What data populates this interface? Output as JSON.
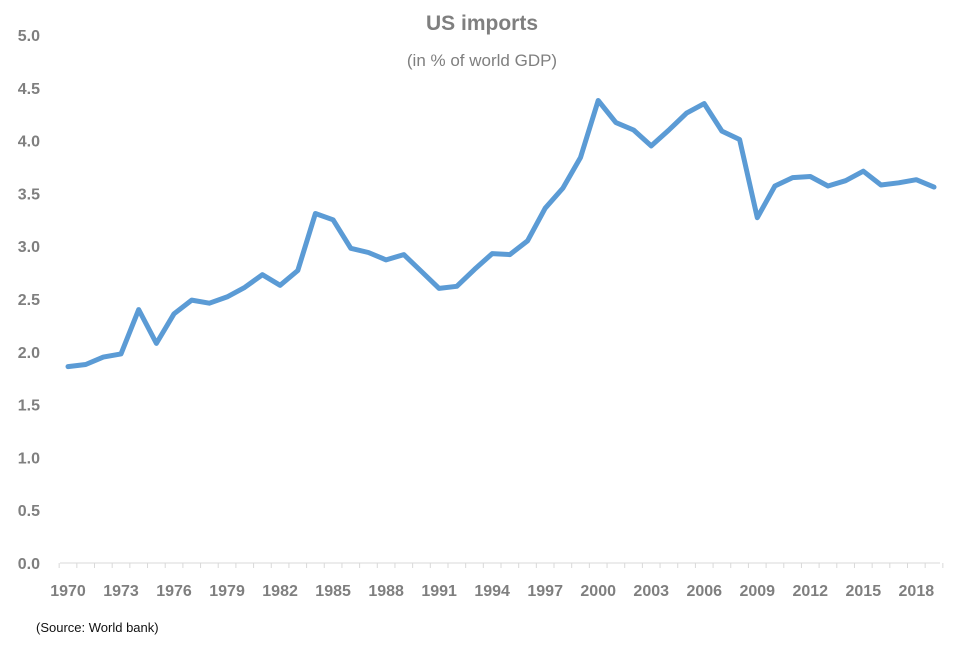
{
  "chart_data": {
    "type": "line",
    "title": "US imports",
    "subtitle": "(in % of world GDP)",
    "xlabel": "",
    "ylabel": "",
    "ylim": [
      0,
      5
    ],
    "yticks": [
      "0.0",
      "0.5",
      "1.0",
      "1.5",
      "2.0",
      "2.5",
      "3.0",
      "3.5",
      "4.0",
      "4.5",
      "5.0"
    ],
    "xticks": [
      "1970",
      "1973",
      "1976",
      "1979",
      "1982",
      "1985",
      "1988",
      "1991",
      "1994",
      "1997",
      "2000",
      "2003",
      "2006",
      "2009",
      "2012",
      "2015",
      "2018"
    ],
    "grid": false,
    "line_color": "#5b9bd5",
    "x": [
      1970,
      1971,
      1972,
      1973,
      1974,
      1975,
      1976,
      1977,
      1978,
      1979,
      1980,
      1981,
      1982,
      1983,
      1984,
      1985,
      1986,
      1987,
      1988,
      1989,
      1990,
      1991,
      1992,
      1993,
      1994,
      1995,
      1996,
      1997,
      1998,
      1999,
      2000,
      2001,
      2002,
      2003,
      2004,
      2005,
      2006,
      2007,
      2008,
      2009,
      2010,
      2011,
      2012,
      2013,
      2014,
      2015,
      2016,
      2017,
      2018,
      2019
    ],
    "series": [
      {
        "values": [
          1.86,
          1.88,
          1.95,
          1.98,
          2.4,
          2.08,
          2.36,
          2.49,
          2.46,
          2.52,
          2.61,
          2.73,
          2.63,
          2.77,
          3.31,
          3.25,
          2.98,
          2.94,
          2.87,
          2.92,
          2.76,
          2.6,
          2.62,
          2.78,
          2.93,
          2.92,
          3.05,
          3.36,
          3.55,
          3.84,
          4.38,
          4.17,
          4.1,
          3.95,
          4.1,
          4.26,
          4.35,
          4.09,
          4.01,
          3.27,
          3.57,
          3.65,
          3.66,
          3.57,
          3.62,
          3.71,
          3.58,
          3.6,
          3.63,
          3.56
        ]
      }
    ]
  },
  "source": "(Source: World bank)"
}
